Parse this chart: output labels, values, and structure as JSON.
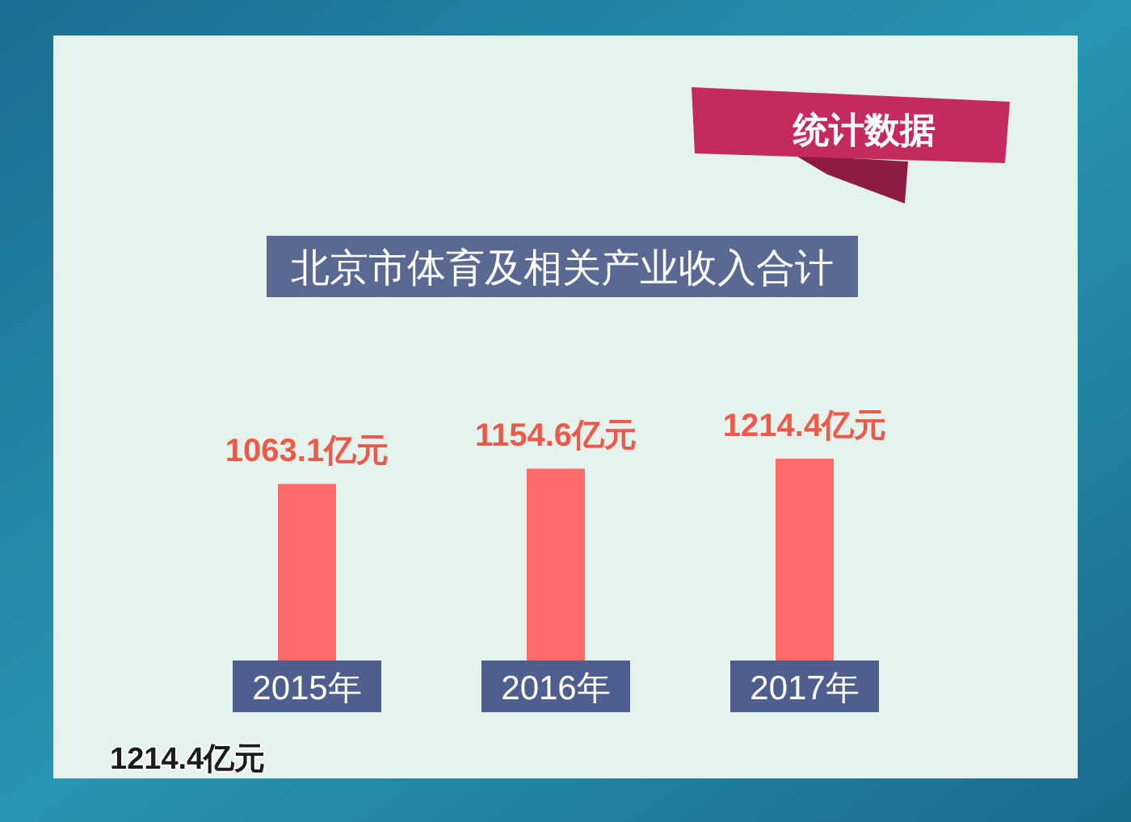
{
  "chart_data": {
    "type": "bar",
    "title": "北京市体育及相关产业收入合计",
    "categories": [
      "2015年",
      "2016年",
      "2017年"
    ],
    "values": [
      1063.1,
      1154.6,
      1214.4
    ],
    "color": "#fd6b6b",
    "value_labels": [
      "1063.1亿元",
      "1154.6亿元",
      "1214.4亿元"
    ],
    "annotations": [
      "统计数据",
      "1214.4亿元"
    ]
  }
}
